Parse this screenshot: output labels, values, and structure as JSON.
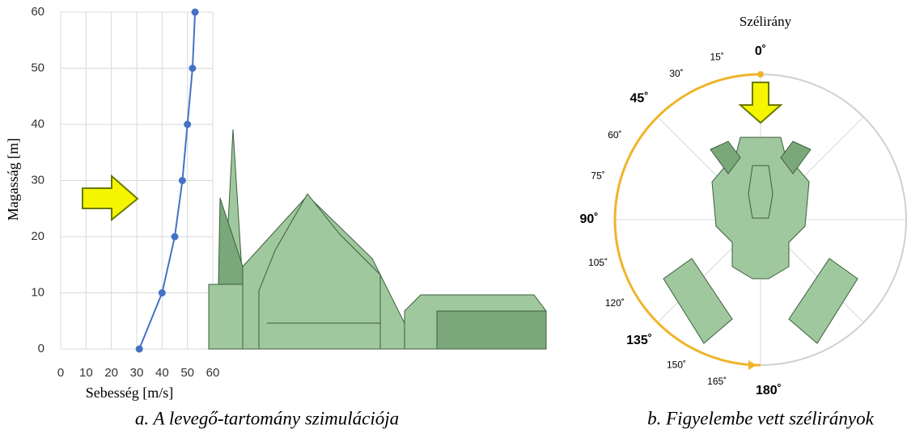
{
  "chart_data": {
    "type": "line",
    "x_label": "Sebesség [m/s]",
    "y_label": "Magasság [m]",
    "x": [
      31,
      40,
      45,
      48,
      50,
      52,
      53
    ],
    "values": [
      0,
      10,
      20,
      30,
      40,
      50,
      60
    ],
    "color": "#4472c4",
    "xlim": [
      0,
      60
    ],
    "xticks": [
      0,
      10,
      20,
      30,
      40,
      50,
      60
    ],
    "ylim": [
      0,
      60
    ],
    "yticks": [
      0,
      10,
      20,
      30,
      40,
      50,
      60
    ],
    "grid": true
  },
  "wind_rose": {
    "title": "Szélirány",
    "angles": [
      {
        "label": "0˚",
        "bold": true
      },
      {
        "label": "15˚",
        "bold": false
      },
      {
        "label": "30˚",
        "bold": false
      },
      {
        "label": "45˚",
        "bold": true
      },
      {
        "label": "60˚",
        "bold": false
      },
      {
        "label": "75˚",
        "bold": false
      },
      {
        "label": "90˚",
        "bold": true
      },
      {
        "label": "105˚",
        "bold": false
      },
      {
        "label": "120˚",
        "bold": false
      },
      {
        "label": "135˚",
        "bold": true
      },
      {
        "label": "150˚",
        "bold": false
      },
      {
        "label": "165˚",
        "bold": false
      },
      {
        "label": "180˚",
        "bold": true
      }
    ]
  },
  "captions": [
    "a. A levegő-tartomány szimulációja",
    "b. Figyelembe vett szélirányok"
  ]
}
